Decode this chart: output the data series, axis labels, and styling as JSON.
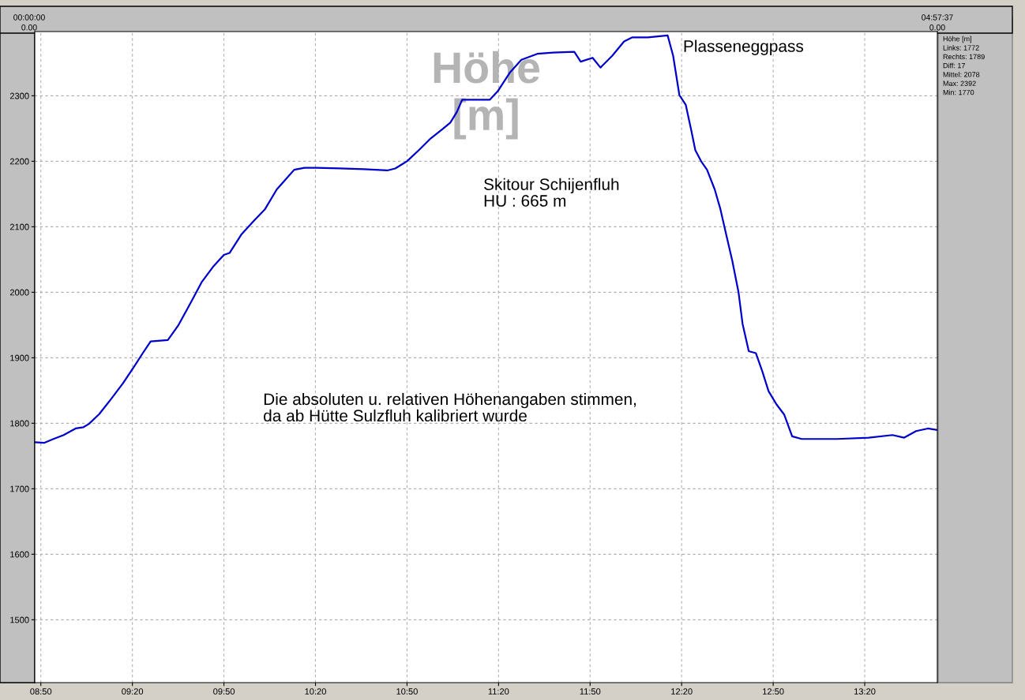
{
  "chart_data": {
    "type": "line",
    "ylabel": "Höhe [m]",
    "x": [
      8.803,
      8.851,
      8.894,
      8.958,
      9.023,
      9.066,
      9.096,
      9.152,
      9.217,
      9.282,
      9.346,
      9.39,
      9.433,
      9.527,
      9.583,
      9.648,
      9.713,
      9.777,
      9.833,
      9.864,
      9.928,
      9.993,
      10.058,
      10.122,
      10.166,
      10.217,
      10.273,
      10.338,
      10.467,
      10.597,
      10.726,
      10.769,
      10.833,
      10.898,
      10.963,
      11.027,
      11.07,
      11.105,
      11.135,
      11.286,
      11.329,
      11.394,
      11.458,
      11.545,
      11.631,
      11.747,
      11.782,
      11.847,
      11.89,
      11.954,
      12.019,
      12.062,
      12.149,
      12.257,
      12.287,
      12.321,
      12.356,
      12.386,
      12.408,
      12.442,
      12.472,
      12.514,
      12.545,
      12.58,
      12.61,
      12.644,
      12.666,
      12.7,
      12.739,
      12.773,
      12.808,
      12.851,
      12.894,
      12.937,
      12.989,
      13.183,
      13.355,
      13.485,
      13.549,
      13.614,
      13.678,
      13.726
    ],
    "series": [
      {
        "color": "#0000cc",
        "values": [
          1771,
          1770,
          1775,
          1782,
          1792,
          1794,
          1799,
          1814,
          1837,
          1861,
          1888,
          1907,
          1925,
          1927,
          1949,
          1982,
          2016,
          2040,
          2057,
          2060,
          2088,
          2108,
          2127,
          2157,
          2171,
          2187,
          2190,
          2190,
          2189,
          2188,
          2186,
          2189,
          2200,
          2217,
          2235,
          2249,
          2259,
          2275,
          2294,
          2294,
          2307,
          2335,
          2355,
          2364,
          2366,
          2367,
          2352,
          2358,
          2343,
          2361,
          2383,
          2389,
          2389,
          2392,
          2361,
          2301,
          2286,
          2247,
          2217,
          2199,
          2187,
          2157,
          2127,
          2084,
          2048,
          2000,
          1952,
          1910,
          1907,
          1880,
          1849,
          1829,
          1813,
          1780,
          1776,
          1776,
          1778,
          1782,
          1778,
          1788,
          1792,
          1790
        ]
      }
    ],
    "xlim": [
      8.8,
      13.73
    ],
    "ylim": [
      1404,
      2398
    ],
    "xticks": [
      {
        "value": 8.8333333,
        "label": "08:50"
      },
      {
        "value": 9.3333333,
        "label": "09:20"
      },
      {
        "value": 9.8333333,
        "label": "09:50"
      },
      {
        "value": 10.3333333,
        "label": "10:20"
      },
      {
        "value": 10.8333333,
        "label": "10:50"
      },
      {
        "value": 11.3333333,
        "label": "11:20"
      },
      {
        "value": 11.8333333,
        "label": "11:50"
      },
      {
        "value": 12.3333333,
        "label": "12:20"
      },
      {
        "value": 12.8333333,
        "label": "12:50"
      },
      {
        "value": 13.3333333,
        "label": "13:20"
      }
    ],
    "yticks": [
      1500,
      1600,
      1700,
      1800,
      1900,
      2000,
      2100,
      2200,
      2300
    ],
    "grid": true,
    "legend": false,
    "line_style": "solid",
    "marker": "none",
    "annotations": [
      {
        "text": "Plasseneggpass",
        "x": 12.257,
        "y": 2392
      },
      "Skitour Schijenfluh\nHU : 665 m",
      "Die absoluten u. relativen Höhenangaben stimmen,\nda ab Hütte Sulzfluh kalibriert wurde",
      "00:00:00\n0.00",
      "04:57:37\n0.00",
      "Höhe [m]",
      "Links: 1772",
      "Rechts: 1789",
      "Diff: 17",
      "Mittel: 2078",
      "Max: 2392",
      "Min: 1770"
    ]
  }
}
